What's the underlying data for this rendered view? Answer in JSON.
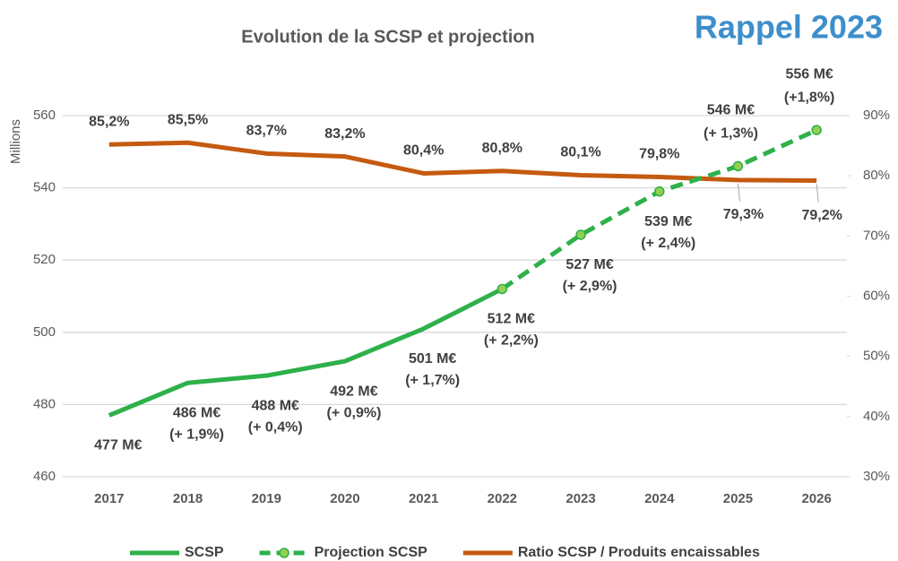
{
  "chart_data": {
    "type": "line",
    "title": "Evolution de la SCSP et projection",
    "annotation": "Rappel 2023",
    "ylabel": "Millions",
    "categories": [
      "2017",
      "2018",
      "2019",
      "2020",
      "2021",
      "2022",
      "2023",
      "2024",
      "2025",
      "2026"
    ],
    "series": [
      {
        "name": "SCSP",
        "color": "#2eb04a",
        "dash": "solid",
        "marker": "none",
        "values": [
          477,
          486,
          488,
          492,
          501,
          512,
          null,
          null,
          null,
          null
        ],
        "value_labels": [
          "477 M€",
          "486 M€",
          "488 M€",
          "492 M€",
          "501 M€",
          "512 M€",
          null,
          null,
          null,
          null
        ],
        "growth_labels": [
          null,
          "(+ 1,9%)",
          "(+ 0,4%)",
          "(+ 0,9%)",
          "(+ 1,7%)",
          "(+ 2,2%)",
          null,
          null,
          null,
          null
        ]
      },
      {
        "name": "Projection SCSP",
        "color": "#2eb04a",
        "dash": "dashed",
        "marker": "circle",
        "values": [
          null,
          null,
          null,
          null,
          null,
          512,
          527,
          539,
          546,
          556
        ],
        "value_labels": [
          null,
          null,
          null,
          null,
          null,
          null,
          "527 M€",
          "539 M€",
          "546 M€",
          "556 M€"
        ],
        "growth_labels": [
          null,
          null,
          null,
          null,
          null,
          null,
          "(+ 2,9%)",
          "(+ 2,4%)",
          "(+ 1,3%)",
          "(+1,8%)"
        ]
      },
      {
        "name": "Ratio SCSP / Produits encaissables",
        "color": "#c55a11",
        "dash": "solid",
        "marker": "none",
        "axis": "y2",
        "values": [
          85.2,
          85.5,
          83.7,
          83.2,
          80.4,
          80.8,
          80.1,
          79.8,
          79.3,
          79.2
        ],
        "value_labels": [
          "85,2%",
          "85,5%",
          "83,7%",
          "83,2%",
          "80,4%",
          "80,8%",
          "80,1%",
          "79,8%",
          "79,3%",
          "79,2%"
        ]
      }
    ],
    "ylim": [
      460,
      560
    ],
    "yticks": [
      460,
      480,
      500,
      520,
      540,
      560
    ],
    "y2lim": [
      30,
      90
    ],
    "y2ticks": [
      {
        "value": 30,
        "label": "30%"
      },
      {
        "value": 40,
        "label": "40%"
      },
      {
        "value": 50,
        "label": "50%"
      },
      {
        "value": 60,
        "label": "60%"
      },
      {
        "value": 70,
        "label": "70%"
      },
      {
        "value": 80,
        "label": "80%"
      },
      {
        "value": 90,
        "label": "90%"
      }
    ],
    "grid": true,
    "legend": "bottom"
  }
}
